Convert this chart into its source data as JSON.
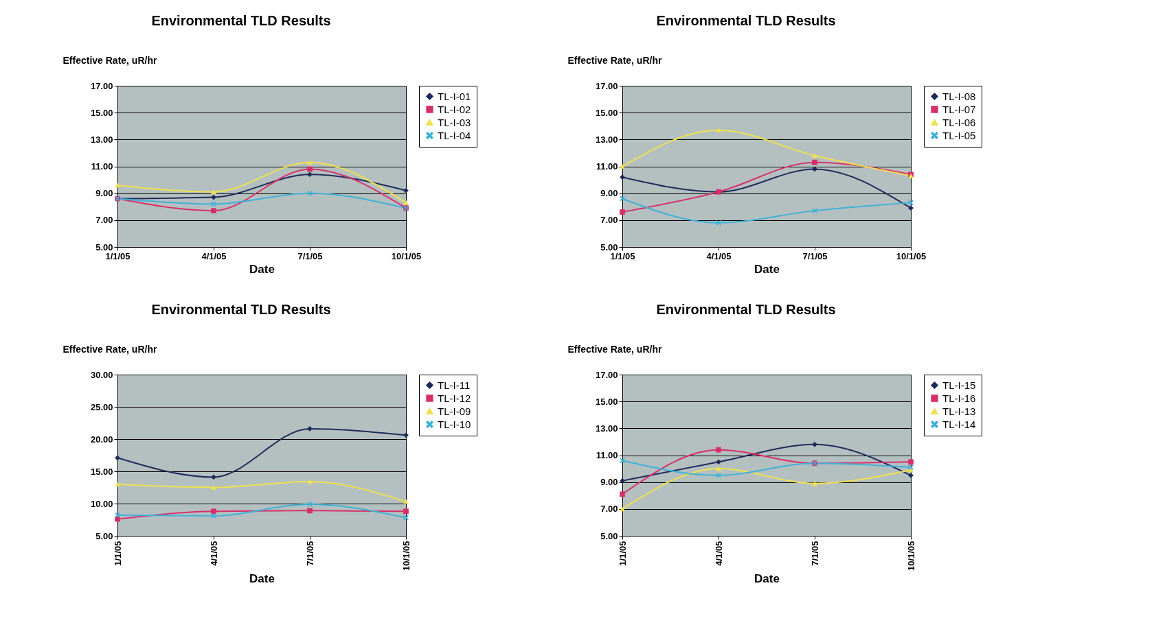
{
  "chart_data": [
    {
      "type": "line",
      "title": "Environmental TLD Results",
      "xlabel": "Date",
      "ylabel": "Effective Rate, uR/hr",
      "categories": [
        "1/1/05",
        "4/1/05",
        "7/1/05",
        "10/1/05"
      ],
      "ylim": [
        5,
        17
      ],
      "yticks": [
        {
          "value": 5,
          "label": "5.00"
        },
        {
          "value": 7,
          "label": "7.00"
        },
        {
          "value": 9,
          "label": "9.00"
        },
        {
          "value": 11,
          "label": "11.00"
        },
        {
          "value": 13,
          "label": "13.00"
        },
        {
          "value": 15,
          "label": "15.00"
        },
        {
          "value": 17,
          "label": "17.00"
        }
      ],
      "grid": "y",
      "legend": "right",
      "series": [
        {
          "name": "TL-I-01",
          "color": "#1f2a5a",
          "marker": "diamond",
          "values": [
            8.6,
            8.7,
            10.4,
            9.2
          ]
        },
        {
          "name": "TL-I-02",
          "color": "#d6306a",
          "marker": "square",
          "values": [
            8.6,
            7.7,
            10.8,
            7.9
          ]
        },
        {
          "name": "TL-I-03",
          "color": "#f0e050",
          "marker": "triangle",
          "values": [
            9.6,
            9.1,
            11.3,
            8.3
          ]
        },
        {
          "name": "TL-I-04",
          "color": "#40b0d8",
          "marker": "cross",
          "values": [
            8.6,
            8.2,
            9.0,
            7.9
          ]
        }
      ]
    },
    {
      "type": "line",
      "title": "Environmental TLD Results",
      "xlabel": "Date",
      "ylabel": "Effective Rate, uR/hr",
      "categories": [
        "1/1/05",
        "4/1/05",
        "7/1/05",
        "10/1/05"
      ],
      "ylim": [
        5,
        17
      ],
      "yticks": [
        {
          "value": 5,
          "label": "5.00"
        },
        {
          "value": 7,
          "label": "7.00"
        },
        {
          "value": 9,
          "label": "9.00"
        },
        {
          "value": 11,
          "label": "11.00"
        },
        {
          "value": 13,
          "label": "13.00"
        },
        {
          "value": 15,
          "label": "15.00"
        },
        {
          "value": 17,
          "label": "17.00"
        }
      ],
      "grid": "y",
      "legend": "right",
      "series": [
        {
          "name": "TL-I-08",
          "color": "#1f2a5a",
          "marker": "diamond",
          "values": [
            10.2,
            9.1,
            10.8,
            7.9
          ]
        },
        {
          "name": "TL-I-07",
          "color": "#d6306a",
          "marker": "square",
          "values": [
            7.6,
            9.1,
            11.3,
            10.4
          ]
        },
        {
          "name": "TL-I-06",
          "color": "#f0e050",
          "marker": "triangle",
          "values": [
            11.0,
            13.7,
            11.8,
            10.3
          ]
        },
        {
          "name": "TL-I-05",
          "color": "#40b0d8",
          "marker": "cross",
          "values": [
            8.6,
            6.8,
            7.7,
            8.3
          ]
        }
      ]
    },
    {
      "type": "line",
      "title": "Environmental TLD Results",
      "xlabel": "Date",
      "ylabel": "Effective Rate, uR/hr",
      "categories": [
        "1/1/05",
        "4/1/05",
        "7/1/05",
        "10/1/05"
      ],
      "ylim": [
        5,
        30
      ],
      "yticks": [
        {
          "value": 5,
          "label": "5.00"
        },
        {
          "value": 10,
          "label": "10.00"
        },
        {
          "value": 15,
          "label": "15.00"
        },
        {
          "value": 20,
          "label": "20.00"
        },
        {
          "value": 25,
          "label": "25.00"
        },
        {
          "value": 30,
          "label": "30.00"
        }
      ],
      "grid": "y",
      "legend": "right",
      "series": [
        {
          "name": "TL-I-11",
          "color": "#1f2a5a",
          "marker": "diamond",
          "values": [
            17.1,
            14.1,
            21.6,
            20.6
          ]
        },
        {
          "name": "TL-I-12",
          "color": "#d6306a",
          "marker": "square",
          "values": [
            7.6,
            8.8,
            8.9,
            8.8
          ]
        },
        {
          "name": "TL-I-09",
          "color": "#f0e050",
          "marker": "triangle",
          "values": [
            13.0,
            12.5,
            13.4,
            10.3
          ]
        },
        {
          "name": "TL-I-10",
          "color": "#40b0d8",
          "marker": "cross",
          "values": [
            8.2,
            8.1,
            9.9,
            7.8
          ]
        }
      ]
    },
    {
      "type": "line",
      "title": "Environmental TLD Results",
      "xlabel": "Date",
      "ylabel": "Effective Rate, uR/hr",
      "categories": [
        "1/1/05",
        "4/1/05",
        "7/1/05",
        "10/1/05"
      ],
      "ylim": [
        5,
        17
      ],
      "yticks": [
        {
          "value": 5,
          "label": "5.00"
        },
        {
          "value": 7,
          "label": "7.00"
        },
        {
          "value": 9,
          "label": "9.00"
        },
        {
          "value": 11,
          "label": "11.00"
        },
        {
          "value": 13,
          "label": "13.00"
        },
        {
          "value": 15,
          "label": "15.00"
        },
        {
          "value": 17,
          "label": "17.00"
        }
      ],
      "grid": "y",
      "legend": "right",
      "series": [
        {
          "name": "TL-I-15",
          "color": "#1f2a5a",
          "marker": "diamond",
          "values": [
            9.1,
            10.5,
            11.8,
            9.5
          ]
        },
        {
          "name": "TL-I-16",
          "color": "#d6306a",
          "marker": "square",
          "values": [
            8.1,
            11.4,
            10.4,
            10.5
          ]
        },
        {
          "name": "TL-I-13",
          "color": "#f0e050",
          "marker": "triangle",
          "values": [
            7.0,
            10.0,
            8.9,
            9.9
          ]
        },
        {
          "name": "TL-I-14",
          "color": "#40b0d8",
          "marker": "cross",
          "values": [
            10.6,
            9.5,
            10.4,
            10.1
          ]
        }
      ]
    }
  ]
}
